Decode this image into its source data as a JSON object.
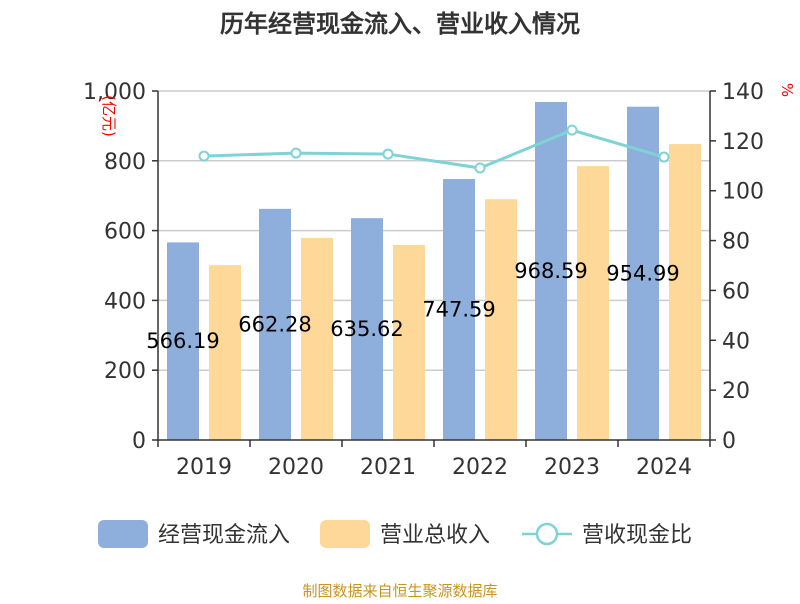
{
  "chart_data": {
    "type": "bar",
    "title": "历年经营现金流入、营业收入情况",
    "categories": [
      "2019",
      "2020",
      "2021",
      "2022",
      "2023",
      "2024"
    ],
    "series": [
      {
        "name": "经营现金流入",
        "type": "bar",
        "axis": "left",
        "color": "#8eaedb",
        "values": [
          566.19,
          662.28,
          635.62,
          747.59,
          968.59,
          954.99
        ],
        "data_labels": [
          "566.19",
          "662.28",
          "635.62",
          "747.59",
          "968.59",
          "954.99"
        ]
      },
      {
        "name": "营业总收入",
        "type": "bar",
        "axis": "left",
        "color": "#fed899",
        "values": [
          501,
          579,
          559,
          690,
          785,
          848
        ]
      },
      {
        "name": "营收现金比",
        "type": "line",
        "axis": "right",
        "color": "#7fd3d6",
        "values": [
          113.9,
          115.1,
          114.7,
          109.1,
          124.3,
          113.5
        ]
      }
    ],
    "y_left": {
      "label": "(亿元)",
      "range": [
        0,
        1000
      ],
      "ticks": [
        "0",
        "200",
        "400",
        "600",
        "800",
        "1,000"
      ],
      "tick_values": [
        0,
        200,
        400,
        600,
        800,
        1000
      ]
    },
    "y_right": {
      "label": "%",
      "range": [
        0,
        140
      ],
      "ticks": [
        "0",
        "20",
        "40",
        "60",
        "80",
        "100",
        "120",
        "140"
      ],
      "tick_values": [
        0,
        20,
        40,
        60,
        80,
        100,
        120,
        140
      ]
    },
    "grid": true,
    "legend_placement": "bottom"
  },
  "footer": {
    "source": "制图数据来自恒生聚源数据库"
  }
}
